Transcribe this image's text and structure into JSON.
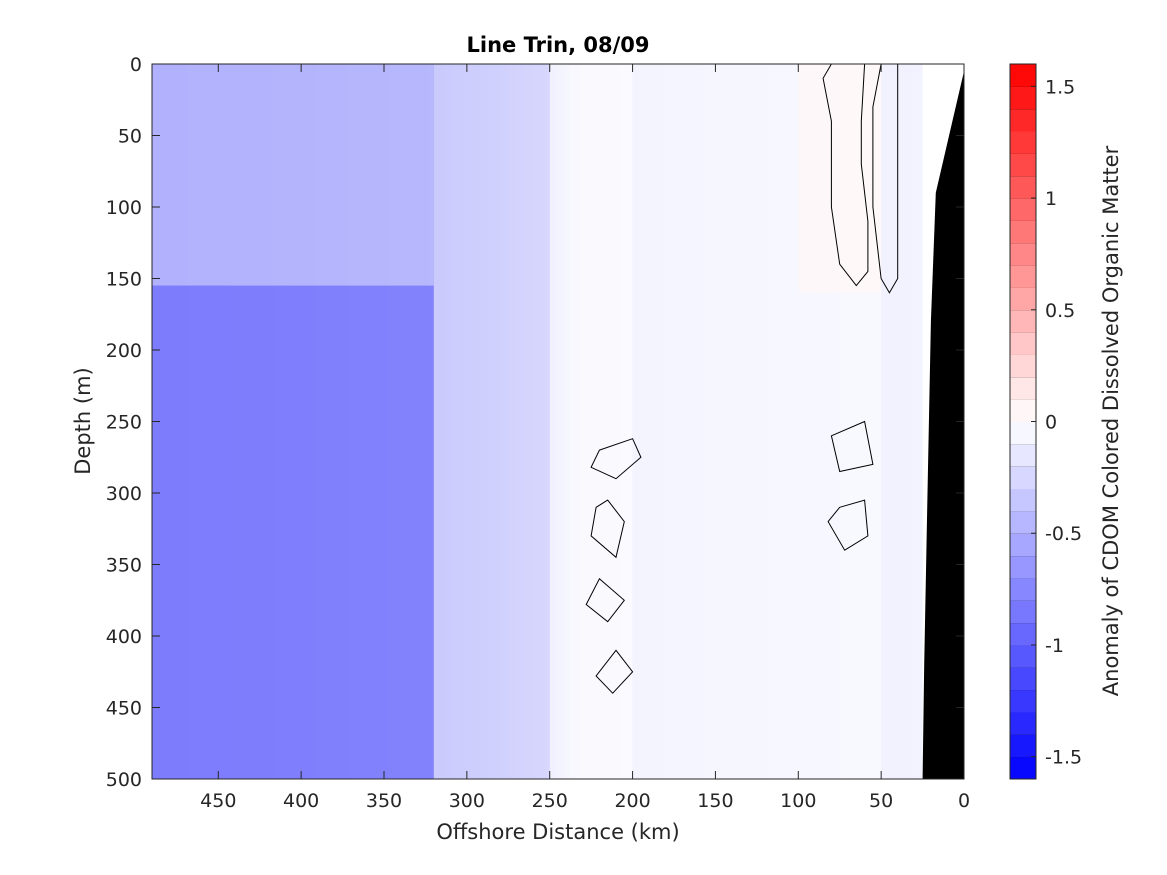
{
  "chart_data": {
    "type": "heatmap",
    "title": "Line Trin, 08/09",
    "xlabel": "Offshore Distance (km)",
    "ylabel": "Depth (m)",
    "colorbar_label": "Anomaly of CDOM Colored Dissolved Organic Matter",
    "x_reversed": true,
    "y_reversed": true,
    "xlim": [
      0,
      490
    ],
    "ylim": [
      0,
      500
    ],
    "clim": [
      -1.6,
      1.6
    ],
    "x_ticks": [
      "450",
      "400",
      "350",
      "300",
      "250",
      "200",
      "150",
      "100",
      "50",
      "0"
    ],
    "x_tick_values": [
      450,
      400,
      350,
      300,
      250,
      200,
      150,
      100,
      50,
      0
    ],
    "y_ticks": [
      "0",
      "50",
      "100",
      "150",
      "200",
      "250",
      "300",
      "350",
      "400",
      "450",
      "500"
    ],
    "y_tick_values": [
      0,
      50,
      100,
      150,
      200,
      250,
      300,
      350,
      400,
      450,
      500
    ],
    "colorbar_ticks": [
      "1.5",
      "1",
      "0.5",
      "0",
      "-0.5",
      "-1",
      "-1.5"
    ],
    "colorbar_tick_values": [
      1.5,
      1,
      0.5,
      0,
      -0.5,
      -1,
      -1.5
    ],
    "contour_level": 0,
    "colormap": [
      "#0000ff",
      "#ffffff",
      "#ff0000"
    ],
    "bathymetry_color": "#000000",
    "bathymetry": [
      [
        0,
        5
      ],
      [
        10,
        55
      ],
      [
        17,
        90
      ],
      [
        20,
        180
      ],
      [
        22,
        300
      ],
      [
        24,
        420
      ],
      [
        25,
        500
      ]
    ],
    "regions": [
      {
        "x_range": [
          0,
          25
        ],
        "depth_range": [
          0,
          500
        ],
        "anomaly": 0.0
      },
      {
        "x_range": [
          25,
          50
        ],
        "depth_range": [
          0,
          500
        ],
        "anomaly": -0.1
      },
      {
        "x_range": [
          50,
          100
        ],
        "depth_range": [
          0,
          160
        ],
        "anomaly": 0.05
      },
      {
        "x_range": [
          50,
          100
        ],
        "depth_range": [
          160,
          500
        ],
        "anomaly": -0.05
      },
      {
        "x_range": [
          100,
          200
        ],
        "depth_range": [
          0,
          500
        ],
        "anomaly": -0.05
      },
      {
        "x_range": [
          200,
          250
        ],
        "depth_range": [
          0,
          500
        ],
        "anomaly": 0.0
      },
      {
        "x_range": [
          250,
          320
        ],
        "depth_range": [
          0,
          500
        ],
        "anomaly": -0.2
      },
      {
        "x_range": [
          320,
          490
        ],
        "depth_range": [
          0,
          155
        ],
        "anomaly": -0.35
      },
      {
        "x_range": [
          320,
          490
        ],
        "depth_range": [
          155,
          500
        ],
        "anomaly": -0.8
      }
    ],
    "grid": false,
    "legend": "colorbar-right"
  }
}
